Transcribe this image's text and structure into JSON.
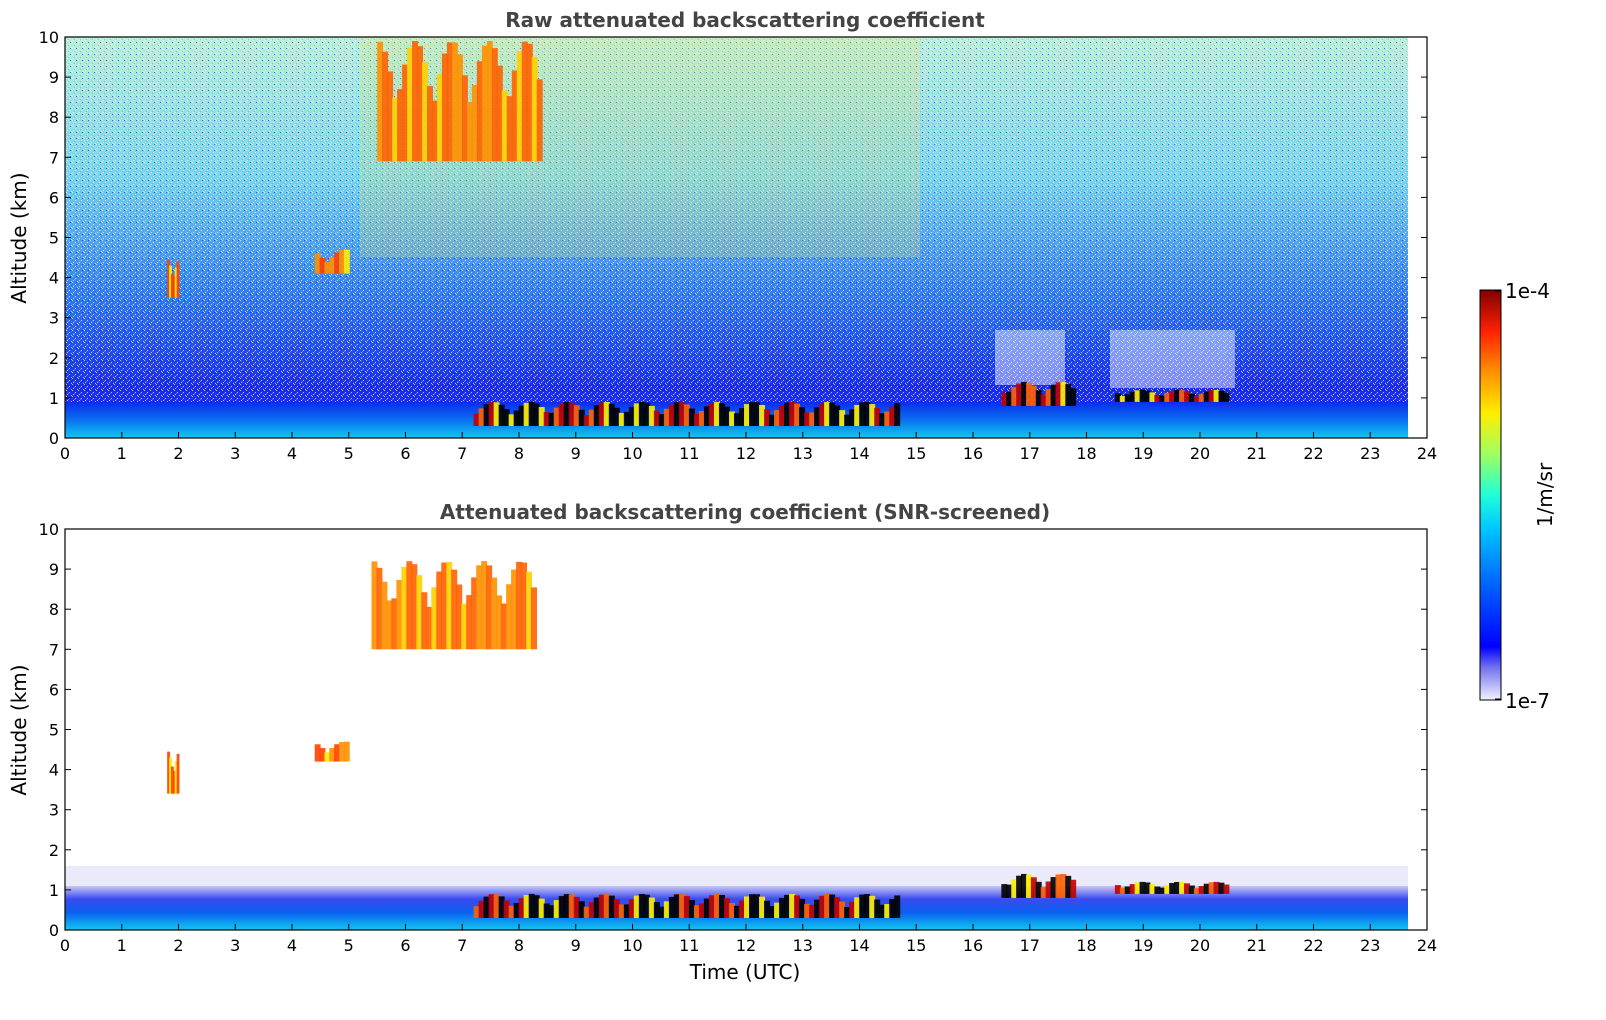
{
  "chart_data": [
    {
      "type": "heatmap",
      "title": "Raw attenuated backscattering coefficient",
      "xlabel": "",
      "ylabel": "Altitude (km)",
      "xlim": [
        0,
        24
      ],
      "ylim": [
        0,
        10
      ],
      "x_ticks": [
        "0",
        "1",
        "2",
        "3",
        "4",
        "5",
        "6",
        "7",
        "8",
        "9",
        "10",
        "11",
        "12",
        "13",
        "14",
        "15",
        "16",
        "17",
        "18",
        "19",
        "20",
        "21",
        "22",
        "23",
        "24"
      ],
      "y_ticks": [
        "0",
        "1",
        "2",
        "3",
        "4",
        "5",
        "6",
        "7",
        "8",
        "9",
        "10"
      ],
      "data_time_end": 23.7,
      "colorscale": "log",
      "features": [
        {
          "kind": "boundary-layer",
          "t0": 0,
          "t1": 23.7,
          "h0": 0,
          "h1": 0.9
        },
        {
          "kind": "low-cloud",
          "t0": 7.2,
          "t1": 14.7,
          "h0": 0.3,
          "h1": 0.9
        },
        {
          "kind": "low-cloud",
          "t0": 16.5,
          "t1": 17.8,
          "h0": 0.8,
          "h1": 1.4
        },
        {
          "kind": "low-cloud",
          "t0": 18.5,
          "t1": 20.5,
          "h0": 0.9,
          "h1": 1.2
        },
        {
          "kind": "mid-cloud",
          "t0": 4.4,
          "t1": 5.0,
          "h0": 4.1,
          "h1": 4.7
        },
        {
          "kind": "mid-cloud",
          "t0": 1.8,
          "t1": 2.0,
          "h0": 3.5,
          "h1": 4.5
        },
        {
          "kind": "cirrus",
          "t0": 5.5,
          "t1": 8.4,
          "h0": 6.9,
          "h1": 9.9
        }
      ]
    },
    {
      "type": "heatmap",
      "title": "Attenuated backscattering coefficient (SNR-screened)",
      "xlabel": "Time (UTC)",
      "ylabel": "Altitude (km)",
      "xlim": [
        0,
        24
      ],
      "ylim": [
        0,
        10
      ],
      "x_ticks": [
        "0",
        "1",
        "2",
        "3",
        "4",
        "5",
        "6",
        "7",
        "8",
        "9",
        "10",
        "11",
        "12",
        "13",
        "14",
        "15",
        "16",
        "17",
        "18",
        "19",
        "20",
        "21",
        "22",
        "23",
        "24"
      ],
      "y_ticks": [
        "0",
        "1",
        "2",
        "3",
        "4",
        "5",
        "6",
        "7",
        "8",
        "9",
        "10"
      ],
      "data_time_end": 23.7,
      "colorscale": "log",
      "features": [
        {
          "kind": "boundary-layer",
          "t0": 0,
          "t1": 23.7,
          "h0": 0,
          "h1": 1.1
        },
        {
          "kind": "low-cloud",
          "t0": 7.2,
          "t1": 14.7,
          "h0": 0.3,
          "h1": 0.9
        },
        {
          "kind": "low-cloud",
          "t0": 16.5,
          "t1": 17.8,
          "h0": 0.8,
          "h1": 1.4
        },
        {
          "kind": "low-cloud",
          "t0": 18.5,
          "t1": 20.5,
          "h0": 0.9,
          "h1": 1.2
        },
        {
          "kind": "mid-cloud",
          "t0": 4.4,
          "t1": 5.0,
          "h0": 4.2,
          "h1": 4.7
        },
        {
          "kind": "mid-cloud",
          "t0": 1.8,
          "t1": 2.0,
          "h0": 3.4,
          "h1": 4.5
        },
        {
          "kind": "cirrus",
          "t0": 5.4,
          "t1": 8.3,
          "h0": 7.0,
          "h1": 9.2
        }
      ]
    }
  ],
  "colorbar": {
    "label": "1/m/sr",
    "max_label": "1e-4",
    "min_label": "1e-7",
    "min_value": 1e-07,
    "max_value": 0.0001,
    "scale": "log",
    "colormap": "jet",
    "colors": [
      "#f2f2ff",
      "#0000ff",
      "#0070ff",
      "#00c8ff",
      "#20ffd8",
      "#a0ff60",
      "#ffee00",
      "#ff9000",
      "#ff2000",
      "#800000"
    ]
  }
}
